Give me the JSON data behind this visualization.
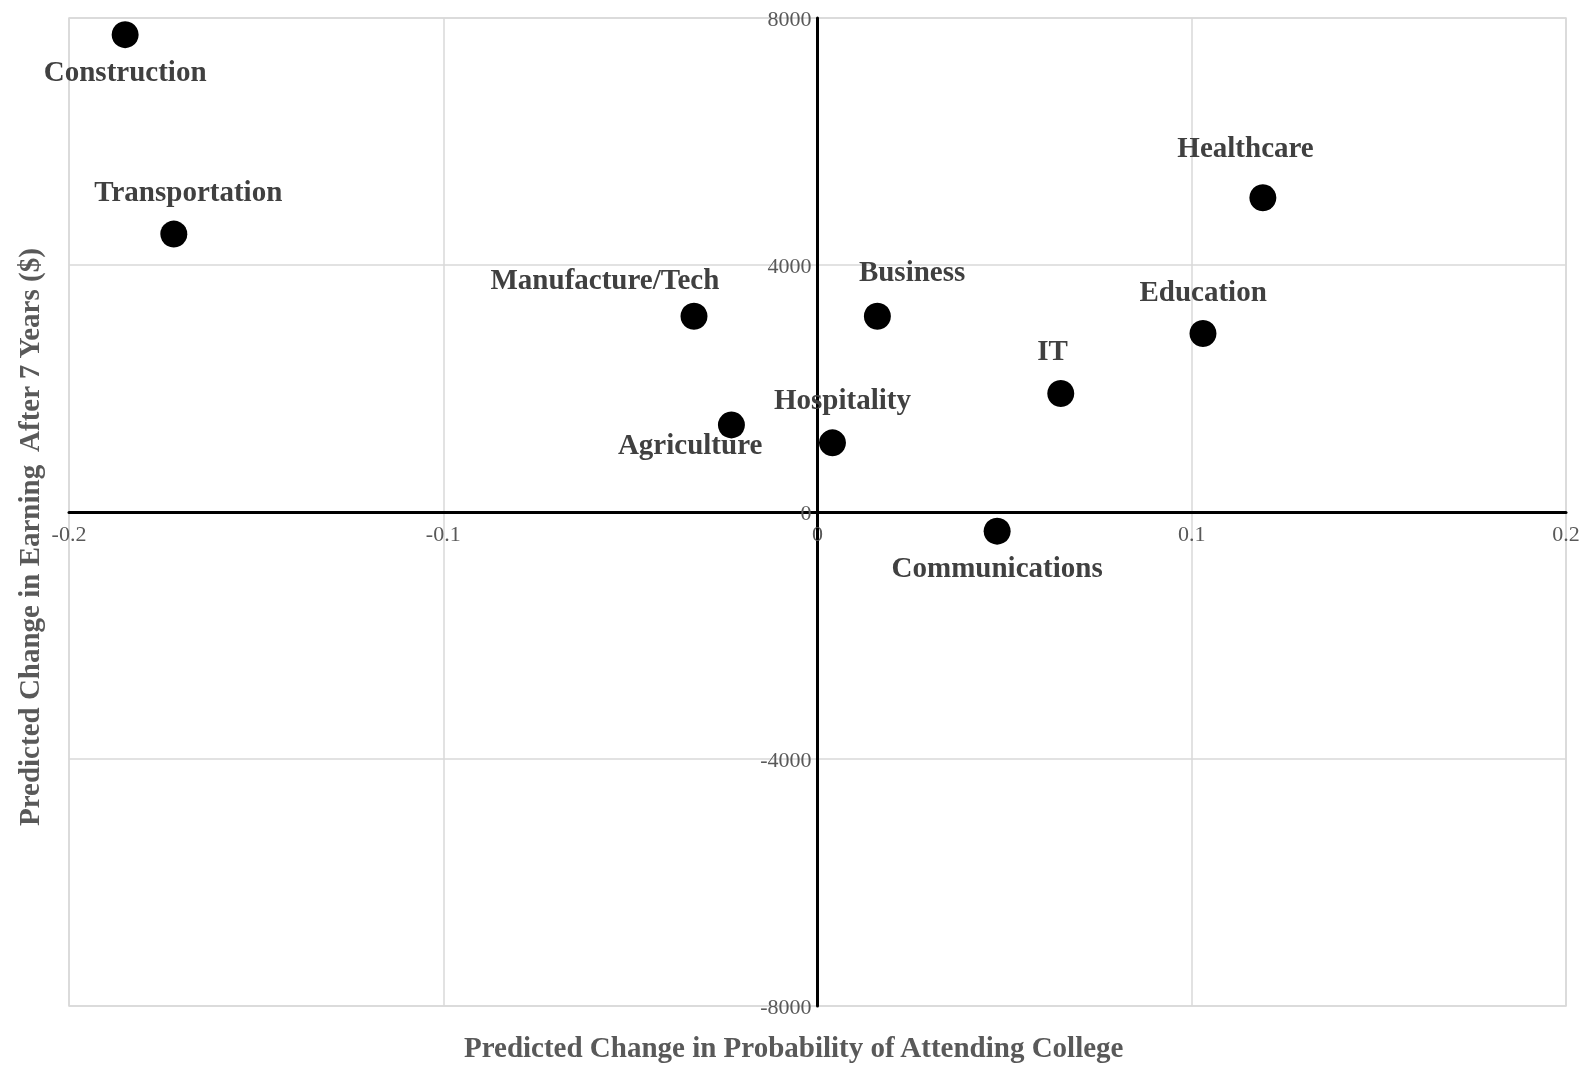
{
  "chart_data": {
    "type": "scatter",
    "xlabel": "Predicted Change in Probability of Attending College",
    "ylabel": "Predicted Change in Earning  After 7 Years ($)",
    "xlim": [
      -0.2,
      0.2
    ],
    "xticks": [
      -0.2,
      -0.1,
      0,
      0.1,
      0.2
    ],
    "ylim": [
      -8000,
      8000
    ],
    "yticks": [
      -8000,
      -4000,
      0,
      4000,
      8000
    ],
    "grid": true,
    "marker": "circle",
    "legend": false,
    "series": [
      {
        "name": "Construction",
        "color": "#000000",
        "x": [
          -0.185
        ],
        "values": [
          7730
        ]
      },
      {
        "name": "Transportation",
        "color": "#000000",
        "x": [
          -0.172
        ],
        "values": [
          4500
        ]
      },
      {
        "name": "Manufacture/Tech",
        "color": "#000000",
        "x": [
          -0.033
        ],
        "values": [
          3170
        ]
      },
      {
        "name": "Agriculture",
        "color": "#000000",
        "x": [
          -0.023
        ],
        "values": [
          1410
        ]
      },
      {
        "name": "Hospitality",
        "color": "#000000",
        "x": [
          0.004
        ],
        "values": [
          1120
        ]
      },
      {
        "name": "Business",
        "color": "#000000",
        "x": [
          0.016
        ],
        "values": [
          3170
        ]
      },
      {
        "name": "Communications",
        "color": "#000000",
        "x": [
          0.048
        ],
        "values": [
          -310
        ]
      },
      {
        "name": "IT",
        "color": "#000000",
        "x": [
          0.065
        ],
        "values": [
          1920
        ]
      },
      {
        "name": "Education",
        "color": "#000000",
        "x": [
          0.103
        ],
        "values": [
          2890
        ]
      },
      {
        "name": "Healthcare",
        "color": "#000000",
        "x": [
          0.119
        ],
        "values": [
          5090
        ]
      }
    ]
  }
}
